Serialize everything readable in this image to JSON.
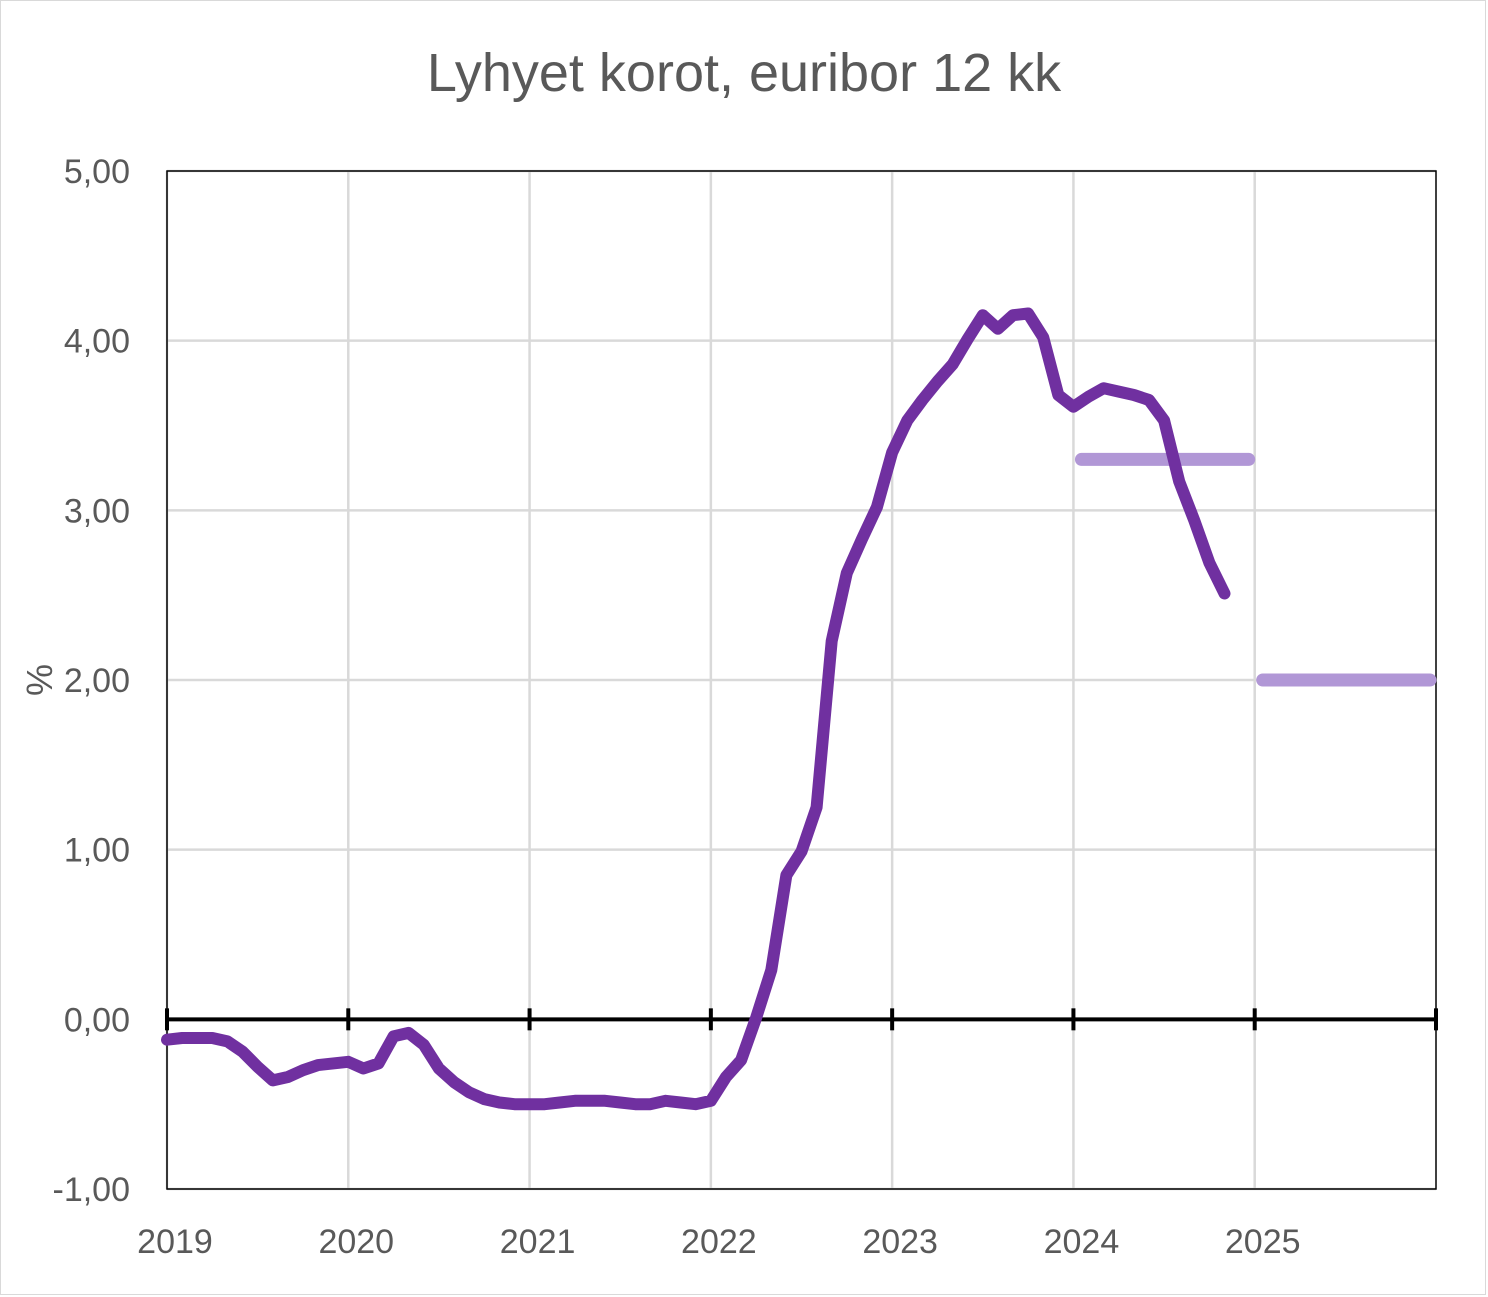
{
  "chart_data": {
    "type": "line",
    "title": "Lyhyet korot, euribor 12 kk",
    "xlabel": "",
    "ylabel": "%",
    "ylim": [
      -1,
      5
    ],
    "xlim": [
      "2019-01",
      "2026-01"
    ],
    "grid": true,
    "y_ticks": [
      "-1,00",
      "0,00",
      "1,00",
      "2,00",
      "3,00",
      "4,00",
      "5,00"
    ],
    "x_ticks": [
      "2019",
      "2020",
      "2021",
      "2022",
      "2023",
      "2024",
      "2025"
    ],
    "colors": {
      "line": "#7030a0",
      "forecast": "#b197d6",
      "grid": "#d9d9d9",
      "zero_axis": "#000000",
      "text": "#595959"
    },
    "series": [
      {
        "x": [
          "2019-01",
          "2019-02",
          "2019-03",
          "2019-04",
          "2019-05",
          "2019-06",
          "2019-07",
          "2019-08",
          "2019-09",
          "2019-10",
          "2019-11",
          "2019-12",
          "2020-01",
          "2020-02",
          "2020-03",
          "2020-04",
          "2020-05",
          "2020-06",
          "2020-07",
          "2020-08",
          "2020-09",
          "2020-10",
          "2020-11",
          "2020-12",
          "2021-01",
          "2021-02",
          "2021-03",
          "2021-04",
          "2021-05",
          "2021-06",
          "2021-07",
          "2021-08",
          "2021-09",
          "2021-10",
          "2021-11",
          "2021-12",
          "2022-01",
          "2022-02",
          "2022-03",
          "2022-04",
          "2022-05",
          "2022-06",
          "2022-07",
          "2022-08",
          "2022-09",
          "2022-10",
          "2022-11",
          "2022-12",
          "2023-01",
          "2023-02",
          "2023-03",
          "2023-04",
          "2023-05",
          "2023-06",
          "2023-07",
          "2023-08",
          "2023-09",
          "2023-10",
          "2023-11",
          "2023-12",
          "2024-01",
          "2024-02",
          "2024-03",
          "2024-04",
          "2024-05",
          "2024-06",
          "2024-07",
          "2024-08",
          "2024-09",
          "2024-10",
          "2024-11"
        ],
        "values": [
          -0.12,
          -0.11,
          -0.11,
          -0.11,
          -0.13,
          -0.19,
          -0.28,
          -0.36,
          -0.34,
          -0.3,
          -0.27,
          -0.26,
          -0.25,
          -0.29,
          -0.26,
          -0.1,
          -0.08,
          -0.15,
          -0.29,
          -0.37,
          -0.43,
          -0.47,
          -0.49,
          -0.5,
          -0.5,
          -0.5,
          -0.49,
          -0.48,
          -0.48,
          -0.48,
          -0.49,
          -0.5,
          -0.5,
          -0.48,
          -0.49,
          -0.5,
          -0.48,
          -0.34,
          -0.24,
          0.01,
          0.29,
          0.85,
          0.99,
          1.25,
          2.23,
          2.63,
          2.83,
          3.02,
          3.34,
          3.53,
          3.65,
          3.76,
          3.86,
          4.01,
          4.15,
          4.07,
          4.15,
          4.16,
          4.02,
          3.68,
          3.61,
          3.67,
          3.72,
          3.7,
          3.68,
          3.65,
          3.53,
          3.17,
          2.94,
          2.69,
          2.51
        ]
      }
    ],
    "forecasts": [
      {
        "year": "2024",
        "value": 3.3
      },
      {
        "year": "2025",
        "value": 2.0
      }
    ]
  }
}
